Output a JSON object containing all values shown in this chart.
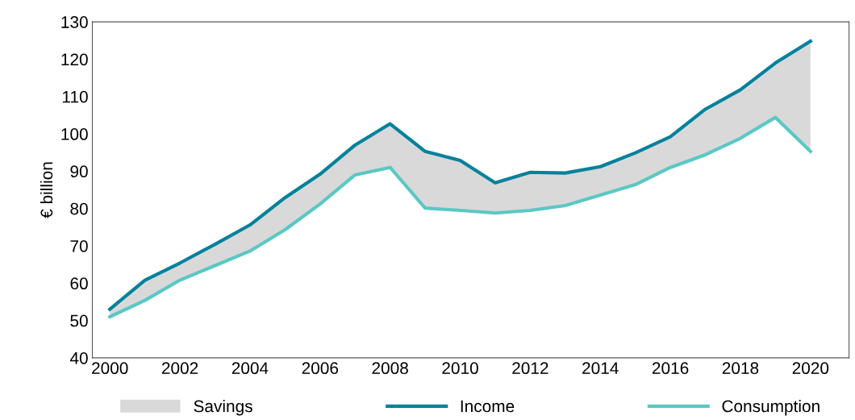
{
  "chart_data": {
    "type": "line",
    "ylabel": "€ billion",
    "x": [
      2000,
      2001,
      2002,
      2003,
      2004,
      2005,
      2006,
      2007,
      2008,
      2009,
      2010,
      2011,
      2012,
      2013,
      2014,
      2015,
      2016,
      2017,
      2018,
      2019,
      2020
    ],
    "series": [
      {
        "name": "Savings",
        "type": "area",
        "color": "#d9d9d9",
        "values": [
          null,
          null,
          null,
          null,
          null,
          null,
          null,
          null,
          null,
          null,
          null,
          null,
          null,
          null,
          null,
          null,
          null,
          null,
          null,
          null,
          null
        ],
        "lower": [
          51,
          55.4,
          60.8,
          64.7,
          68.6,
          74.3,
          81.2,
          89,
          91,
          80.1,
          79.5,
          78.8,
          79.5,
          80.8,
          83.6,
          86.4,
          91,
          94.4,
          98.8,
          104.4,
          95.3
        ],
        "upper": [
          53,
          60.8,
          65.4,
          70.4,
          75.6,
          82.9,
          89.2,
          97,
          102.7,
          95.3,
          92.9,
          86.9,
          89.7,
          89.5,
          91.2,
          94.9,
          99.2,
          106.6,
          111.8,
          119,
          124.8
        ]
      },
      {
        "name": "Income",
        "color": "#00819c",
        "values": [
          53,
          60.8,
          65.4,
          70.4,
          75.6,
          82.9,
          89.2,
          97,
          102.7,
          95.3,
          92.9,
          86.9,
          89.7,
          89.5,
          91.2,
          94.9,
          99.2,
          106.6,
          111.8,
          119,
          124.8
        ]
      },
      {
        "name": "Consumption",
        "color": "#5ac8c4",
        "values": [
          51,
          55.4,
          60.8,
          64.7,
          68.6,
          74.3,
          81.2,
          89,
          91,
          80.1,
          79.5,
          78.8,
          79.5,
          80.8,
          83.6,
          86.4,
          91,
          94.4,
          98.8,
          104.4,
          95.3
        ]
      }
    ],
    "xlim": [
      1999.5,
      2021.1
    ],
    "xticks": [
      2000,
      2002,
      2004,
      2006,
      2008,
      2010,
      2012,
      2014,
      2016,
      2018,
      2020
    ],
    "ylim": [
      40,
      130
    ],
    "yticks": [
      40,
      50,
      60,
      70,
      80,
      90,
      100,
      110,
      120,
      130
    ],
    "grid": false,
    "legend": "bottom",
    "marker": "none",
    "line_style": "solid"
  }
}
